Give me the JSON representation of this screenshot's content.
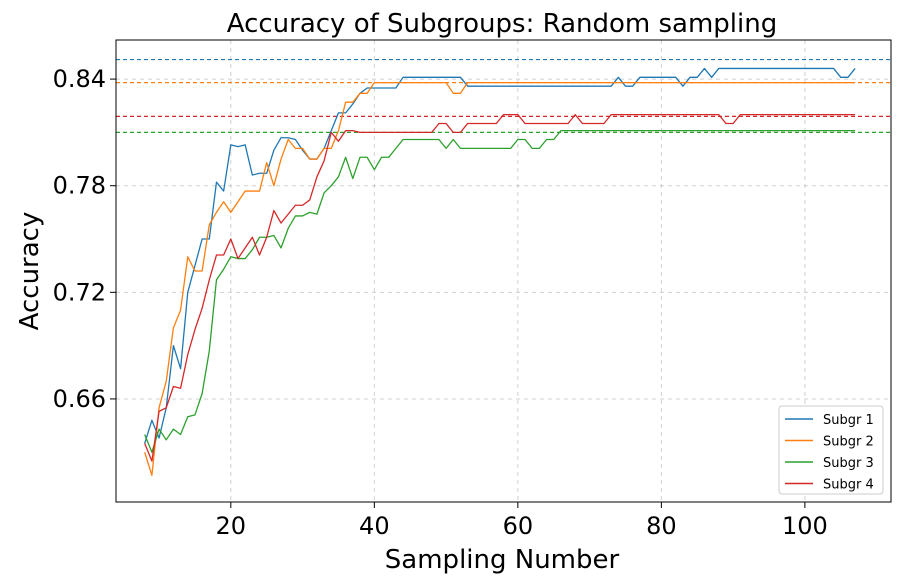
{
  "chart_data": {
    "type": "line",
    "title": "Accuracy of Subgroups: Random sampling",
    "xlabel": "Sampling Number",
    "ylabel": "Accuracy",
    "xlim": [
      4,
      112
    ],
    "ylim": [
      0.602,
      0.862
    ],
    "xticks": [
      20,
      40,
      60,
      80,
      100
    ],
    "yticks": [
      0.66,
      0.72,
      0.78,
      0.84
    ],
    "grid": true,
    "legend_position": "bottom-right",
    "x": [
      8,
      9,
      10,
      11,
      12,
      13,
      14,
      15,
      16,
      17,
      18,
      19,
      20,
      21,
      22,
      23,
      24,
      25,
      26,
      27,
      28,
      29,
      30,
      31,
      32,
      33,
      34,
      35,
      36,
      37,
      38,
      39,
      40,
      41,
      42,
      43,
      44,
      45,
      46,
      47,
      48,
      49,
      50,
      51,
      52,
      53,
      54,
      55,
      56,
      57,
      58,
      59,
      60,
      61,
      62,
      63,
      64,
      65,
      66,
      67,
      68,
      69,
      70,
      71,
      72,
      73,
      74,
      75,
      76,
      77,
      78,
      79,
      80,
      81,
      82,
      83,
      84,
      85,
      86,
      87,
      88,
      89,
      90,
      91,
      92,
      93,
      94,
      95,
      96,
      97,
      98,
      99,
      100,
      101,
      102,
      103,
      104,
      105,
      106,
      107
    ],
    "series": [
      {
        "name": "Subgr 1",
        "color": "#1f77b4",
        "reference": 0.851,
        "values": [
          0.635,
          0.648,
          0.638,
          0.655,
          0.69,
          0.677,
          0.72,
          0.735,
          0.75,
          0.75,
          0.782,
          0.777,
          0.803,
          0.802,
          0.803,
          0.786,
          0.787,
          0.787,
          0.8,
          0.807,
          0.807,
          0.806,
          0.8,
          0.795,
          0.795,
          0.801,
          0.811,
          0.821,
          0.821,
          0.826,
          0.832,
          0.835,
          0.835,
          0.835,
          0.835,
          0.835,
          0.841,
          0.841,
          0.841,
          0.841,
          0.841,
          0.841,
          0.841,
          0.841,
          0.841,
          0.836,
          0.836,
          0.836,
          0.836,
          0.836,
          0.836,
          0.836,
          0.836,
          0.836,
          0.836,
          0.836,
          0.836,
          0.836,
          0.836,
          0.836,
          0.836,
          0.836,
          0.836,
          0.836,
          0.836,
          0.836,
          0.841,
          0.836,
          0.836,
          0.841,
          0.841,
          0.841,
          0.841,
          0.841,
          0.841,
          0.836,
          0.841,
          0.841,
          0.846,
          0.841,
          0.846,
          0.846,
          0.846,
          0.846,
          0.846,
          0.846,
          0.846,
          0.846,
          0.846,
          0.846,
          0.846,
          0.846,
          0.846,
          0.846,
          0.846,
          0.846,
          0.846,
          0.841,
          0.841,
          0.846
        ]
      },
      {
        "name": "Subgr 2",
        "color": "#ff7f0e",
        "reference": 0.838,
        "values": [
          0.63,
          0.617,
          0.655,
          0.67,
          0.7,
          0.71,
          0.74,
          0.732,
          0.732,
          0.758,
          0.765,
          0.771,
          0.765,
          0.771,
          0.777,
          0.777,
          0.777,
          0.793,
          0.78,
          0.795,
          0.806,
          0.801,
          0.801,
          0.795,
          0.795,
          0.801,
          0.801,
          0.811,
          0.827,
          0.827,
          0.832,
          0.832,
          0.838,
          0.838,
          0.838,
          0.838,
          0.838,
          0.838,
          0.838,
          0.838,
          0.838,
          0.838,
          0.838,
          0.832,
          0.832,
          0.838,
          0.838,
          0.838,
          0.838,
          0.838,
          0.838,
          0.838,
          0.838,
          0.838,
          0.838,
          0.838,
          0.838,
          0.838,
          0.838,
          0.838,
          0.838,
          0.838,
          0.838,
          0.838,
          0.838,
          0.838,
          0.838,
          0.838,
          0.838,
          0.838,
          0.838,
          0.838,
          0.838,
          0.838,
          0.838,
          0.838,
          0.838,
          0.838,
          0.838,
          0.838,
          0.838,
          0.838,
          0.838,
          0.838,
          0.838,
          0.838,
          0.838,
          0.838,
          0.838,
          0.838,
          0.838,
          0.838,
          0.838,
          0.838,
          0.838,
          0.838,
          0.838,
          0.838,
          0.838,
          0.838
        ]
      },
      {
        "name": "Subgr 3",
        "color": "#2ca02c",
        "reference": 0.81,
        "values": [
          0.64,
          0.63,
          0.643,
          0.637,
          0.643,
          0.64,
          0.65,
          0.651,
          0.663,
          0.687,
          0.727,
          0.733,
          0.74,
          0.739,
          0.739,
          0.744,
          0.751,
          0.751,
          0.752,
          0.745,
          0.756,
          0.763,
          0.763,
          0.765,
          0.764,
          0.776,
          0.78,
          0.785,
          0.796,
          0.784,
          0.796,
          0.796,
          0.789,
          0.796,
          0.796,
          0.801,
          0.806,
          0.806,
          0.806,
          0.806,
          0.806,
          0.806,
          0.801,
          0.806,
          0.801,
          0.801,
          0.801,
          0.801,
          0.801,
          0.801,
          0.801,
          0.801,
          0.806,
          0.806,
          0.801,
          0.801,
          0.806,
          0.806,
          0.811,
          0.811,
          0.811,
          0.811,
          0.811,
          0.811,
          0.811,
          0.811,
          0.811,
          0.811,
          0.811,
          0.811,
          0.811,
          0.811,
          0.811,
          0.811,
          0.811,
          0.811,
          0.811,
          0.811,
          0.811,
          0.811,
          0.811,
          0.811,
          0.811,
          0.811,
          0.811,
          0.811,
          0.811,
          0.811,
          0.811,
          0.811,
          0.811,
          0.811,
          0.811,
          0.811,
          0.811,
          0.811,
          0.811,
          0.811,
          0.811,
          0.811
        ]
      },
      {
        "name": "Subgr 4",
        "color": "#d62728",
        "reference": 0.819,
        "values": [
          0.635,
          0.625,
          0.653,
          0.655,
          0.667,
          0.666,
          0.685,
          0.699,
          0.711,
          0.727,
          0.741,
          0.741,
          0.75,
          0.739,
          0.745,
          0.751,
          0.741,
          0.751,
          0.766,
          0.759,
          0.764,
          0.769,
          0.769,
          0.772,
          0.785,
          0.794,
          0.81,
          0.805,
          0.811,
          0.811,
          0.81,
          0.81,
          0.81,
          0.81,
          0.81,
          0.81,
          0.81,
          0.81,
          0.81,
          0.81,
          0.81,
          0.815,
          0.815,
          0.81,
          0.81,
          0.815,
          0.815,
          0.815,
          0.815,
          0.815,
          0.82,
          0.82,
          0.82,
          0.815,
          0.815,
          0.815,
          0.815,
          0.815,
          0.815,
          0.815,
          0.82,
          0.815,
          0.815,
          0.815,
          0.815,
          0.82,
          0.82,
          0.82,
          0.82,
          0.82,
          0.82,
          0.82,
          0.82,
          0.82,
          0.82,
          0.82,
          0.82,
          0.82,
          0.82,
          0.82,
          0.82,
          0.815,
          0.815,
          0.82,
          0.82,
          0.82,
          0.82,
          0.82,
          0.82,
          0.82,
          0.82,
          0.82,
          0.82,
          0.82,
          0.82,
          0.82,
          0.82,
          0.82,
          0.82,
          0.82
        ]
      }
    ]
  }
}
